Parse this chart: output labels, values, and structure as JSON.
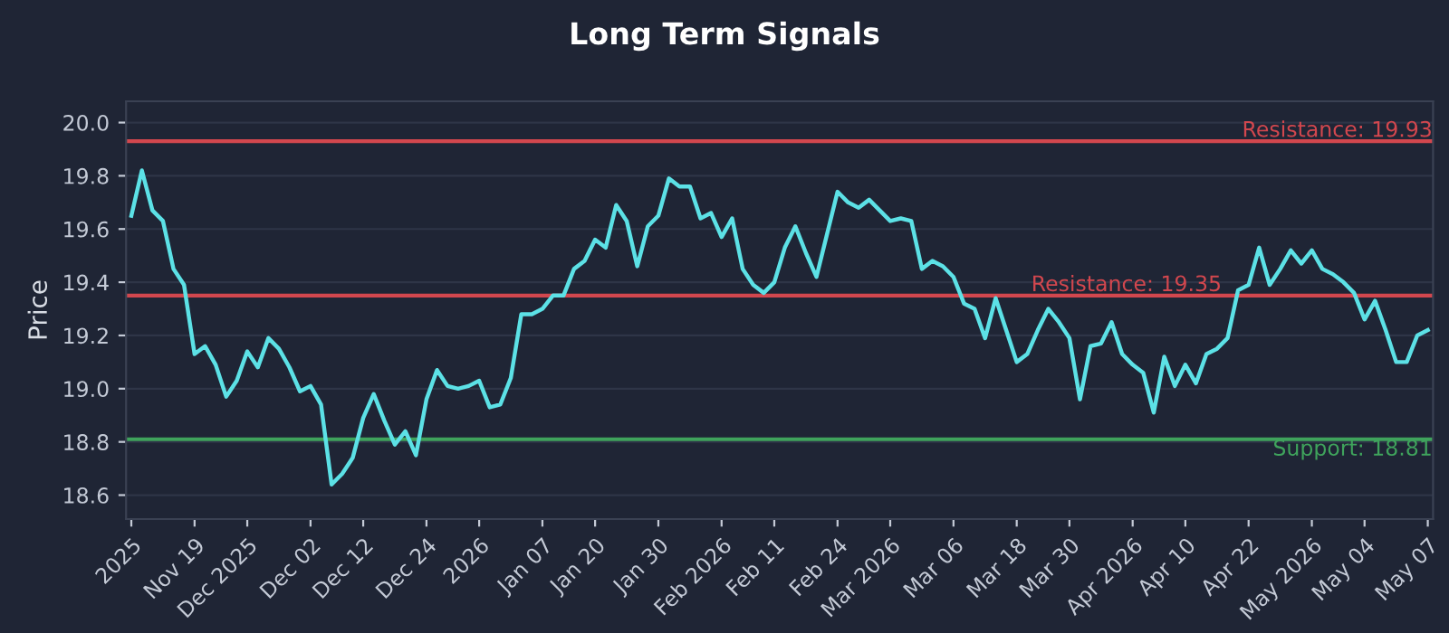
{
  "chart_data": {
    "type": "line",
    "title": "Long Term Signals",
    "ylabel": "Price",
    "categories": [
      "2025",
      null,
      null,
      null,
      null,
      null,
      "Nov 19",
      null,
      null,
      null,
      null,
      "Dec 2025",
      null,
      null,
      null,
      null,
      null,
      "Dec 02",
      null,
      null,
      null,
      null,
      "Dec 12",
      null,
      null,
      null,
      null,
      null,
      "Dec 24",
      null,
      null,
      null,
      null,
      "2026",
      null,
      null,
      null,
      null,
      null,
      "Jan 07",
      null,
      null,
      null,
      null,
      "Jan 20",
      null,
      null,
      null,
      null,
      null,
      "Jan 30",
      null,
      null,
      null,
      null,
      null,
      "Feb 2026",
      null,
      null,
      null,
      null,
      "Feb 11",
      null,
      null,
      null,
      null,
      null,
      "Feb 24",
      null,
      null,
      null,
      null,
      "Mar 2026",
      null,
      null,
      null,
      null,
      null,
      "Mar 06",
      null,
      null,
      null,
      null,
      null,
      "Mar 18",
      null,
      null,
      null,
      null,
      "Mar 30",
      null,
      null,
      null,
      null,
      null,
      "Apr 2026",
      null,
      null,
      null,
      null,
      "Apr 10",
      null,
      null,
      null,
      null,
      null,
      "Apr 22",
      null,
      null,
      null,
      null,
      null,
      "May 2026",
      null,
      null,
      null,
      null,
      "May 04",
      null,
      null,
      null,
      null,
      null,
      "May 07"
    ],
    "series": [
      {
        "color": "#5ce1e6",
        "values": [
          19.65,
          19.82,
          19.67,
          19.63,
          19.45,
          19.39,
          19.13,
          19.16,
          19.09,
          18.97,
          19.03,
          19.14,
          19.08,
          19.19,
          19.15,
          19.08,
          18.99,
          19.01,
          18.94,
          18.64,
          18.68,
          18.74,
          18.89,
          18.98,
          18.88,
          18.79,
          18.84,
          18.75,
          18.96,
          19.07,
          19.01,
          19.0,
          19.01,
          19.03,
          18.93,
          18.94,
          19.04,
          19.28,
          19.28,
          19.3,
          19.35,
          19.35,
          19.45,
          19.48,
          19.56,
          19.53,
          19.69,
          19.63,
          19.46,
          19.61,
          19.65,
          19.79,
          19.76,
          19.76,
          19.64,
          19.66,
          19.57,
          19.64,
          19.45,
          19.39,
          19.36,
          19.4,
          19.53,
          19.61,
          19.51,
          19.42,
          19.58,
          19.74,
          19.7,
          19.68,
          19.71,
          19.67,
          19.63,
          19.64,
          19.63,
          19.45,
          19.48,
          19.46,
          19.42,
          19.32,
          19.3,
          19.19,
          19.34,
          19.22,
          19.1,
          19.13,
          19.22,
          19.3,
          19.25,
          19.19,
          18.96,
          19.16,
          19.17,
          19.25,
          19.13,
          19.09,
          19.06,
          18.91,
          19.12,
          19.01,
          19.09,
          19.02,
          19.13,
          19.15,
          19.19,
          19.37,
          19.39,
          19.53,
          19.39,
          19.45,
          19.52,
          19.47,
          19.52,
          19.45,
          19.43,
          19.4,
          19.36,
          19.26,
          19.33,
          19.22,
          19.1,
          19.1,
          19.2,
          19.22
        ]
      }
    ],
    "ylim": [
      18.51,
      20.08
    ],
    "yticks": [
      18.6,
      18.8,
      {
        "value": 19,
        "label": "19.0"
      },
      19.2,
      19.4,
      19.6,
      19.8,
      {
        "value": 20,
        "label": "20.0"
      }
    ],
    "grid": "y",
    "legend": false,
    "marker": "none",
    "line_style": "solid",
    "ref_lines": [
      {
        "axis": "y",
        "value": 19.93,
        "label": "Resistance: 19.93",
        "color": "#d2474e"
      },
      {
        "axis": "y",
        "value": 19.35,
        "label": "Resistance: 19.35",
        "color": "#d2474e"
      },
      {
        "axis": "y",
        "value": 18.81,
        "label": "Support: 18.81",
        "color": "#3fa35c"
      }
    ]
  }
}
